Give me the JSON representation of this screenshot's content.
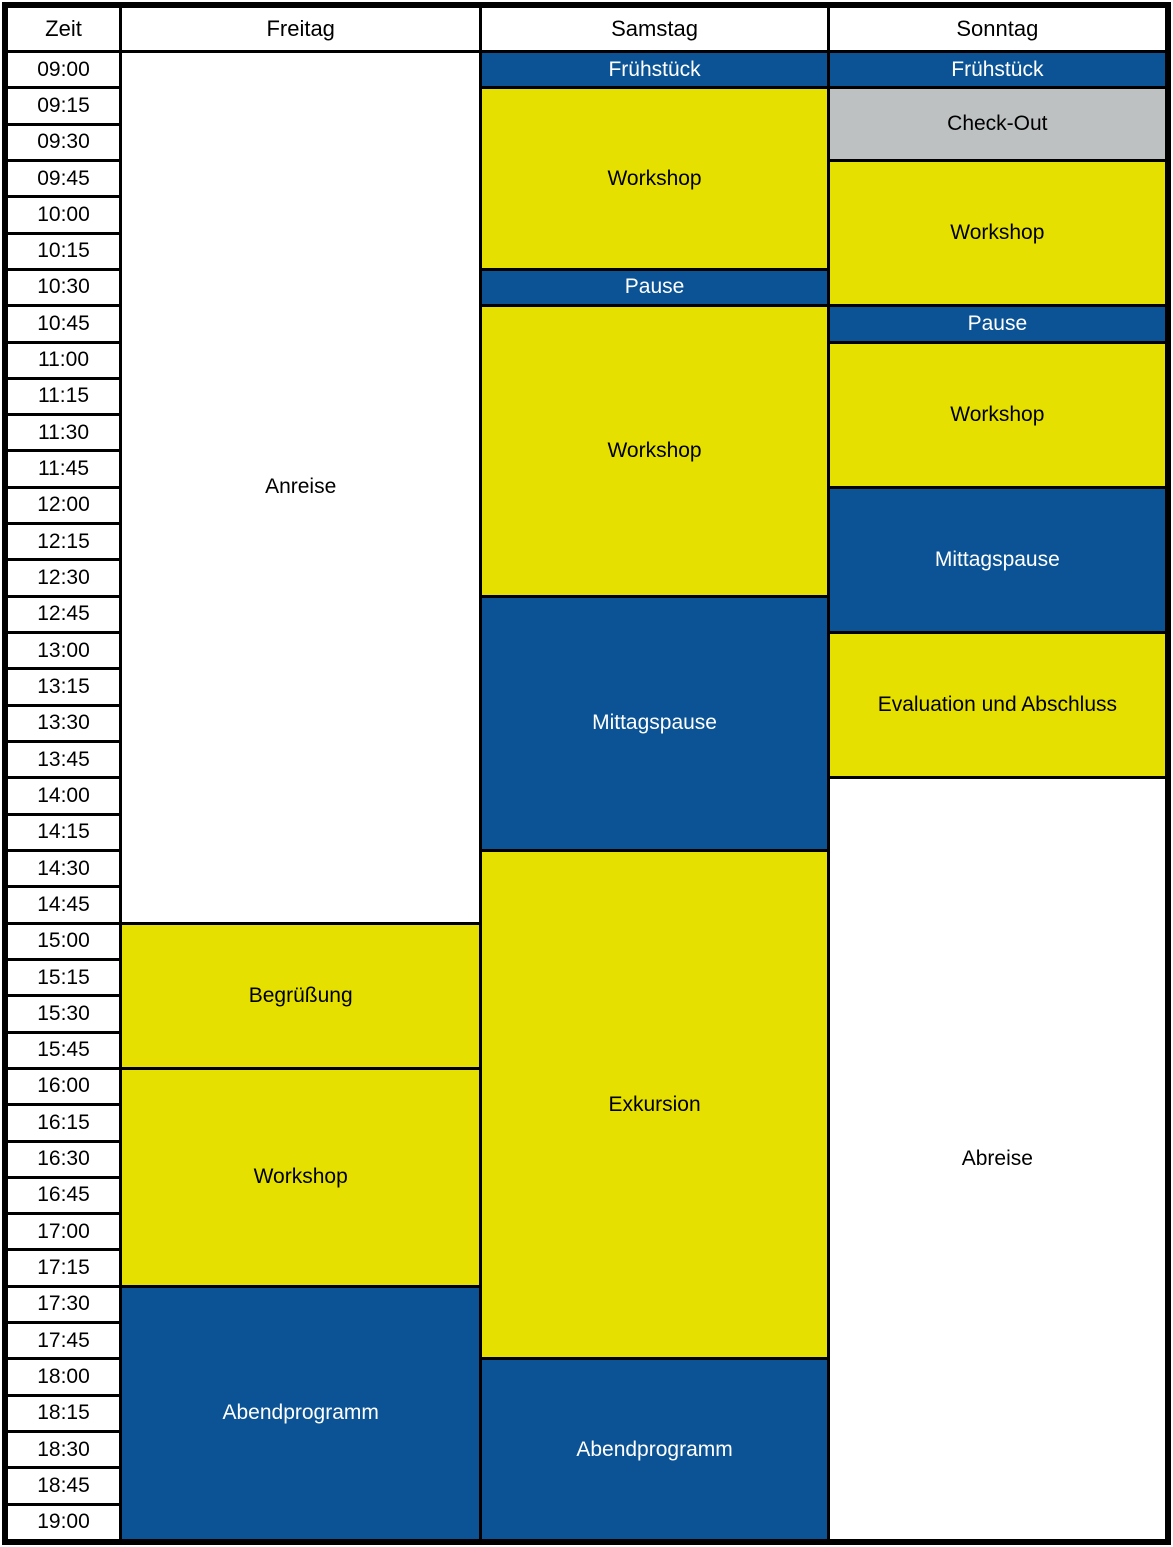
{
  "schedule": {
    "columns": [
      "Zeit",
      "Freitag",
      "Samstag",
      "Sonntag"
    ],
    "time_slots": [
      "09:00",
      "09:15",
      "09:30",
      "09:45",
      "10:00",
      "10:15",
      "10:30",
      "10:45",
      "11:00",
      "11:15",
      "11:30",
      "11:45",
      "12:00",
      "12:15",
      "12:30",
      "12:45",
      "13:00",
      "13:15",
      "13:30",
      "13:45",
      "14:00",
      "14:15",
      "14:30",
      "14:45",
      "15:00",
      "15:15",
      "15:30",
      "15:45",
      "16:00",
      "16:15",
      "16:30",
      "16:45",
      "17:00",
      "17:15",
      "17:30",
      "17:45",
      "18:00",
      "18:15",
      "18:30",
      "18:45",
      "19:00"
    ],
    "colors": {
      "blue": "#0B5394",
      "yellow": "#E5E000",
      "gray": "#BDC1C1",
      "white": "#FFFFFF",
      "frame": "#000000"
    },
    "days": [
      {
        "name": "Freitag",
        "events": [
          {
            "label": "Anreise",
            "color": "white",
            "start": "09:00",
            "span": 24
          },
          {
            "label": "Begrüßung",
            "color": "yellow",
            "start": "15:00",
            "span": 4
          },
          {
            "label": "Workshop",
            "color": "yellow",
            "start": "16:00",
            "span": 6
          },
          {
            "label": "Abendprogramm",
            "color": "blue",
            "start": "17:30",
            "span": 7
          }
        ]
      },
      {
        "name": "Samstag",
        "events": [
          {
            "label": "Frühstück",
            "color": "blue",
            "start": "09:00",
            "span": 1
          },
          {
            "label": "Workshop",
            "color": "yellow",
            "start": "09:15",
            "span": 5
          },
          {
            "label": "Pause",
            "color": "blue",
            "start": "10:30",
            "span": 1
          },
          {
            "label": "Workshop",
            "color": "yellow",
            "start": "10:45",
            "span": 8
          },
          {
            "label": "Mittagspause",
            "color": "blue",
            "start": "12:45",
            "span": 7
          },
          {
            "label": "Exkursion",
            "color": "yellow",
            "start": "14:30",
            "span": 14
          },
          {
            "label": "Abendprogramm",
            "color": "blue",
            "start": "18:00",
            "span": 5
          }
        ]
      },
      {
        "name": "Sonntag",
        "events": [
          {
            "label": "Frühstück",
            "color": "blue",
            "start": "09:00",
            "span": 1
          },
          {
            "label": "Check-Out",
            "color": "gray",
            "start": "09:15",
            "span": 2
          },
          {
            "label": "Workshop",
            "color": "yellow",
            "start": "09:45",
            "span": 4
          },
          {
            "label": "Pause",
            "color": "blue",
            "start": "10:45",
            "span": 1
          },
          {
            "label": "Workshop",
            "color": "yellow",
            "start": "11:00",
            "span": 4
          },
          {
            "label": "Mittagspause",
            "color": "blue",
            "start": "12:00",
            "span": 4
          },
          {
            "label": "Evaluation und Abschluss",
            "color": "yellow",
            "start": "13:00",
            "span": 4
          },
          {
            "label": "Abreise",
            "color": "white",
            "start": "14:00",
            "span": 21
          }
        ]
      }
    ]
  }
}
